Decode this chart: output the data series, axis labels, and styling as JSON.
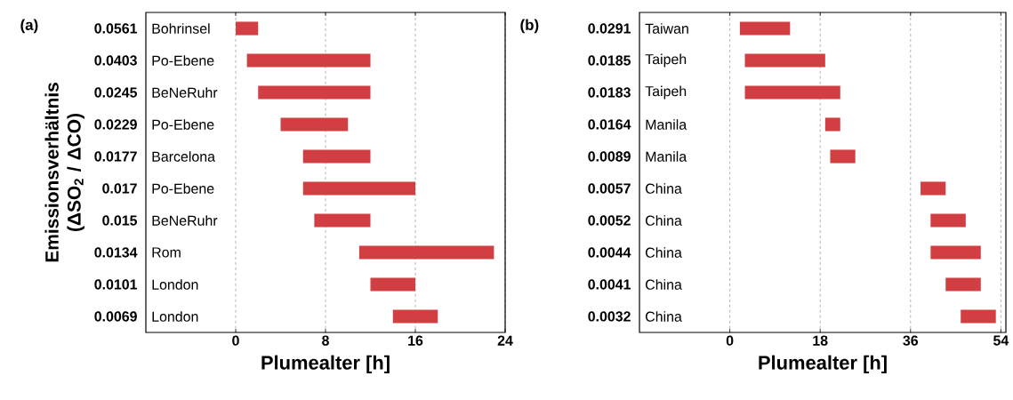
{
  "chart_data": [
    {
      "type": "bar",
      "orientation": "horizontal",
      "title": "(a)",
      "xlabel": "Plumealter [h]",
      "ylabel": "Emissionsverhältnis (ΔSO$_{2}$ / ΔCO)",
      "categories": [
        "0.0561",
        "0.0403",
        "0.0245",
        "0.0229",
        "0.0177",
        "0.017",
        "0.015",
        "0.0134",
        "0.0101",
        "0.0069"
      ],
      "base": [
        0,
        1,
        2,
        4,
        6,
        6,
        7,
        11,
        12,
        14
      ],
      "values": [
        2,
        11,
        10,
        6,
        6,
        10,
        5,
        12,
        4,
        4
      ],
      "color": "#d13f42",
      "xlim": [
        -8,
        24
      ],
      "xticks": [
        0,
        8,
        16,
        24
      ],
      "grid": "x",
      "annotations": [
        "Bohrinsel",
        "Po-Ebene",
        "BeNeRuhr",
        "Po-Ebene",
        "Barcelona",
        "Po-Ebene",
        "BeNeRuhr",
        "Rom",
        "London",
        "London"
      ]
    },
    {
      "type": "bar",
      "orientation": "horizontal",
      "title": "(b)",
      "xlabel": "Plumealter [h]",
      "categories": [
        "0.0291",
        "0.0185",
        "0.0183",
        "0.0164",
        "0.0089",
        "0.0057",
        "0.0052",
        "0.0044",
        "0.0041",
        "0.0032"
      ],
      "base": [
        2,
        3,
        3,
        19,
        20,
        38,
        40,
        40,
        43,
        46
      ],
      "values": [
        10,
        16,
        19,
        3,
        5,
        5,
        7,
        10,
        7,
        7
      ],
      "color": "#d13f42",
      "xlim": [
        -18,
        55
      ],
      "xticks": [
        0,
        18,
        36,
        54
      ],
      "grid": "x",
      "annotations": [
        "Taiwan",
        "Taipeh",
        "Taipeh",
        "Manila",
        "Manila",
        "China",
        "China",
        "China",
        "China",
        "China"
      ]
    }
  ]
}
